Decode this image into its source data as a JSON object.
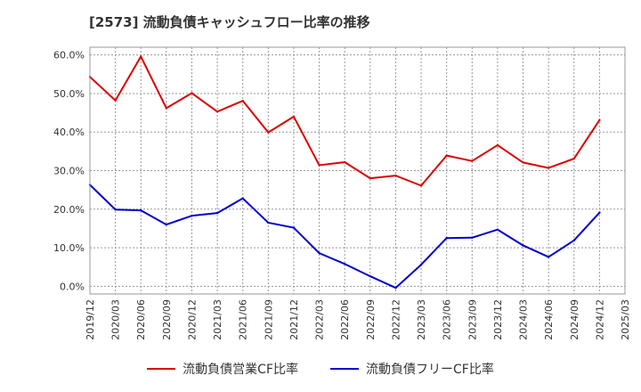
{
  "chart_data": {
    "type": "line",
    "title": "[2573]  流動負債キャッシュフロー比率の推移",
    "x": [
      "2019/12",
      "2020/03",
      "2020/06",
      "2020/09",
      "2020/12",
      "2021/03",
      "2021/06",
      "2021/09",
      "2021/12",
      "2022/03",
      "2022/06",
      "2022/09",
      "2022/12",
      "2023/03",
      "2023/06",
      "2023/09",
      "2023/12",
      "2024/03",
      "2024/06",
      "2024/09",
      "2024/12"
    ],
    "x_ticks": [
      "2019/12",
      "2020/03",
      "2020/06",
      "2020/09",
      "2020/12",
      "2021/03",
      "2021/06",
      "2021/09",
      "2021/12",
      "2022/03",
      "2022/06",
      "2022/09",
      "2022/12",
      "2023/03",
      "2023/06",
      "2023/09",
      "2023/12",
      "2024/03",
      "2024/06",
      "2024/09",
      "2024/12",
      "2025/03"
    ],
    "y_ticks": [
      "0.0%",
      "10.0%",
      "20.0%",
      "30.0%",
      "40.0%",
      "50.0%",
      "60.0%"
    ],
    "ylim": [
      -2,
      62
    ],
    "grid": true,
    "legend_position": "bottom",
    "series": [
      {
        "name": "流動負債営業CF比率",
        "color": "#dd0000",
        "values": [
          54.3,
          48.2,
          59.6,
          46.2,
          50.1,
          45.3,
          48.1,
          39.9,
          44.0,
          31.4,
          32.2,
          28.0,
          28.7,
          26.1,
          33.9,
          32.5,
          36.6,
          32.1,
          30.7,
          33.1,
          43.1
        ]
      },
      {
        "name": "流動負債フリーCF比率",
        "color": "#0000cc",
        "values": [
          26.3,
          19.9,
          19.7,
          16.0,
          18.3,
          19.0,
          22.8,
          16.5,
          15.2,
          8.6,
          5.8,
          2.6,
          -0.4,
          5.6,
          12.5,
          12.6,
          14.7,
          10.6,
          7.6,
          11.9,
          19.1
        ]
      }
    ]
  }
}
